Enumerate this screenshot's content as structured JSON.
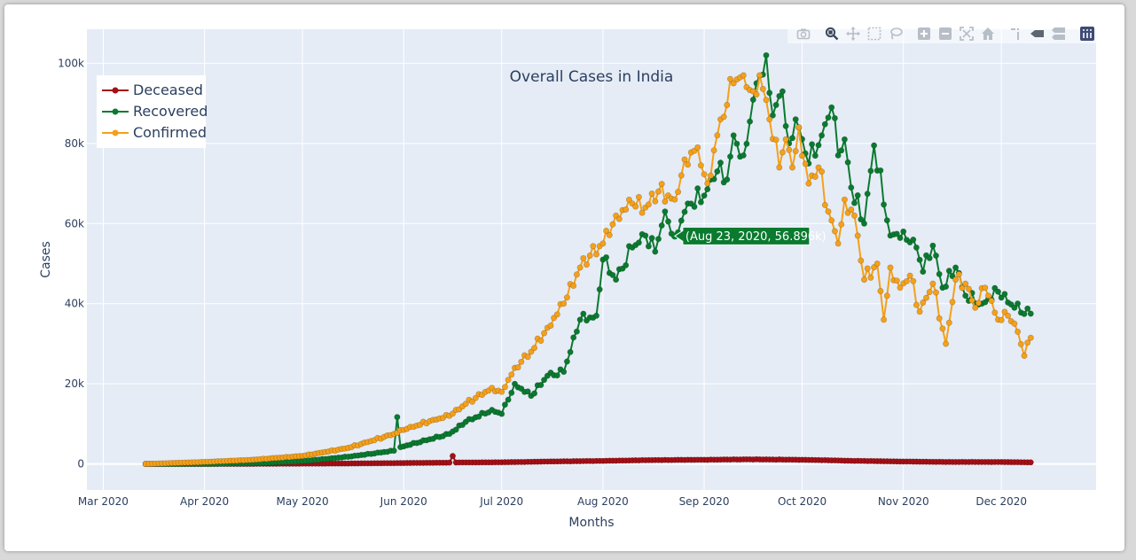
{
  "chart_data": {
    "type": "line",
    "title": "Overall Cases in India",
    "xlabel": "Months",
    "ylabel": "Cases",
    "x_start": "2020-03-14",
    "x_range": [
      "2020-02-25",
      "2020-12-30"
    ],
    "x_ticks": [
      {
        "date": "2020-03-01",
        "label": "Mar 2020"
      },
      {
        "date": "2020-04-01",
        "label": "Apr 2020"
      },
      {
        "date": "2020-05-01",
        "label": "May 2020"
      },
      {
        "date": "2020-06-01",
        "label": "Jun 2020"
      },
      {
        "date": "2020-07-01",
        "label": "Jul 2020"
      },
      {
        "date": "2020-08-01",
        "label": "Aug 2020"
      },
      {
        "date": "2020-09-01",
        "label": "Sep 2020"
      },
      {
        "date": "2020-10-01",
        "label": "Oct 2020"
      },
      {
        "date": "2020-11-01",
        "label": "Nov 2020"
      },
      {
        "date": "2020-12-01",
        "label": "Dec 2020"
      }
    ],
    "ylim": [
      -6500,
      108500
    ],
    "y_ticks": [
      {
        "value": 0,
        "label": "0"
      },
      {
        "value": 20000,
        "label": "20k"
      },
      {
        "value": 40000,
        "label": "40k"
      },
      {
        "value": 60000,
        "label": "60k"
      },
      {
        "value": 80000,
        "label": "80k"
      },
      {
        "value": 100000,
        "label": "100k"
      }
    ],
    "grid": true,
    "legend_position": "top-left",
    "series": [
      {
        "name": "Deceased",
        "color": "#a50f15",
        "anchors": [
          [
            "2020-03-14",
            0
          ],
          [
            "2020-04-01",
            5
          ],
          [
            "2020-04-15",
            30
          ],
          [
            "2020-05-01",
            80
          ],
          [
            "2020-05-15",
            120
          ],
          [
            "2020-06-01",
            230
          ],
          [
            "2020-06-15",
            330
          ],
          [
            "2020-06-16",
            2000
          ],
          [
            "2020-06-17",
            360
          ],
          [
            "2020-07-01",
            420
          ],
          [
            "2020-07-15",
            600
          ],
          [
            "2020-08-01",
            760
          ],
          [
            "2020-08-15",
            950
          ],
          [
            "2020-09-01",
            1050
          ],
          [
            "2020-09-15",
            1150
          ],
          [
            "2020-10-01",
            1050
          ],
          [
            "2020-10-15",
            800
          ],
          [
            "2020-11-01",
            600
          ],
          [
            "2020-11-15",
            500
          ],
          [
            "2020-12-01",
            480
          ],
          [
            "2020-12-10",
            400
          ]
        ]
      },
      {
        "name": "Recovered",
        "color": "#0a7a2f",
        "anchors": [
          [
            "2020-03-14",
            0
          ],
          [
            "2020-04-01",
            20
          ],
          [
            "2020-04-15",
            150
          ],
          [
            "2020-05-01",
            700
          ],
          [
            "2020-05-15",
            1800
          ],
          [
            "2020-05-29",
            3300
          ],
          [
            "2020-05-30",
            11700
          ],
          [
            "2020-05-31",
            4200
          ],
          [
            "2020-06-15",
            7500
          ],
          [
            "2020-06-20",
            10500
          ],
          [
            "2020-06-28",
            13500
          ],
          [
            "2020-07-01",
            12500
          ],
          [
            "2020-07-05",
            20000
          ],
          [
            "2020-07-10",
            17000
          ],
          [
            "2020-07-15",
            22000
          ],
          [
            "2020-07-20",
            23000
          ],
          [
            "2020-07-25",
            36000
          ],
          [
            "2020-07-30",
            37000
          ],
          [
            "2020-08-01",
            51000
          ],
          [
            "2020-08-05",
            46000
          ],
          [
            "2020-08-10",
            54000
          ],
          [
            "2020-08-14",
            57000
          ],
          [
            "2020-08-17",
            53000
          ],
          [
            "2020-08-20",
            63000
          ],
          [
            "2020-08-23",
            56896
          ],
          [
            "2020-08-27",
            65000
          ],
          [
            "2020-09-01",
            67000
          ],
          [
            "2020-09-05",
            73000
          ],
          [
            "2020-09-08",
            71000
          ],
          [
            "2020-09-10",
            82000
          ],
          [
            "2020-09-13",
            77000
          ],
          [
            "2020-09-17",
            95000
          ],
          [
            "2020-09-20",
            102000
          ],
          [
            "2020-09-22",
            87000
          ],
          [
            "2020-09-25",
            93000
          ],
          [
            "2020-09-27",
            80000
          ],
          [
            "2020-09-29",
            86000
          ],
          [
            "2020-10-03",
            75000
          ],
          [
            "2020-10-07",
            82000
          ],
          [
            "2020-10-10",
            89000
          ],
          [
            "2020-10-12",
            77000
          ],
          [
            "2020-10-14",
            81000
          ],
          [
            "2020-10-16",
            69000
          ],
          [
            "2020-10-20",
            60000
          ],
          [
            "2020-10-23",
            79500
          ],
          [
            "2020-10-28",
            57000
          ],
          [
            "2020-11-01",
            58000
          ],
          [
            "2020-11-05",
            54000
          ],
          [
            "2020-11-07",
            48000
          ],
          [
            "2020-11-10",
            54500
          ],
          [
            "2020-11-13",
            44000
          ],
          [
            "2020-11-17",
            49000
          ],
          [
            "2020-11-20",
            42000
          ],
          [
            "2020-11-25",
            40000
          ],
          [
            "2020-11-30",
            43000
          ],
          [
            "2020-12-05",
            39000
          ],
          [
            "2020-12-10",
            37500
          ]
        ]
      },
      {
        "name": "Confirmed",
        "color": "#f5a01a",
        "anchors": [
          [
            "2020-03-14",
            0
          ],
          [
            "2020-04-01",
            500
          ],
          [
            "2020-04-15",
            1000
          ],
          [
            "2020-05-01",
            2000
          ],
          [
            "2020-05-15",
            4000
          ],
          [
            "2020-05-29",
            7500
          ],
          [
            "2020-06-01",
            8500
          ],
          [
            "2020-06-10",
            11000
          ],
          [
            "2020-06-15",
            12000
          ],
          [
            "2020-06-20",
            15000
          ],
          [
            "2020-06-28",
            19000
          ],
          [
            "2020-07-01",
            18000
          ],
          [
            "2020-07-05",
            24000
          ],
          [
            "2020-07-10",
            28000
          ],
          [
            "2020-07-15",
            34000
          ],
          [
            "2020-07-20",
            40000
          ],
          [
            "2020-07-25",
            49000
          ],
          [
            "2020-07-28",
            52000
          ],
          [
            "2020-08-01",
            55000
          ],
          [
            "2020-08-05",
            62000
          ],
          [
            "2020-08-10",
            65000
          ],
          [
            "2020-08-14",
            64000
          ],
          [
            "2020-08-18",
            68000
          ],
          [
            "2020-08-23",
            66000
          ],
          [
            "2020-08-26",
            76000
          ],
          [
            "2020-08-30",
            79000
          ],
          [
            "2020-09-02",
            70000
          ],
          [
            "2020-09-06",
            86000
          ],
          [
            "2020-09-10",
            95000
          ],
          [
            "2020-09-13",
            97000
          ],
          [
            "2020-09-16",
            93000
          ],
          [
            "2020-09-18",
            97000
          ],
          [
            "2020-09-21",
            86000
          ],
          [
            "2020-09-24",
            74000
          ],
          [
            "2020-09-26",
            81000
          ],
          [
            "2020-09-28",
            74000
          ],
          [
            "2020-09-30",
            84000
          ],
          [
            "2020-10-03",
            70000
          ],
          [
            "2020-10-06",
            74000
          ],
          [
            "2020-10-09",
            63000
          ],
          [
            "2020-10-12",
            55000
          ],
          [
            "2020-10-14",
            66000
          ],
          [
            "2020-10-17",
            62000
          ],
          [
            "2020-10-20",
            46000
          ],
          [
            "2020-10-24",
            50000
          ],
          [
            "2020-10-26",
            36000
          ],
          [
            "2020-10-28",
            49000
          ],
          [
            "2020-10-31",
            44000
          ],
          [
            "2020-11-03",
            47000
          ],
          [
            "2020-11-06",
            38000
          ],
          [
            "2020-11-10",
            45000
          ],
          [
            "2020-11-14",
            30000
          ],
          [
            "2020-11-17",
            46000
          ],
          [
            "2020-11-20",
            45000
          ],
          [
            "2020-11-23",
            39000
          ],
          [
            "2020-11-26",
            44000
          ],
          [
            "2020-11-30",
            36000
          ],
          [
            "2020-12-03",
            37000
          ],
          [
            "2020-12-06",
            33000
          ],
          [
            "2020-12-08",
            27000
          ],
          [
            "2020-12-10",
            31500
          ]
        ]
      }
    ],
    "hover": {
      "label": "(Aug 23, 2020, 56.896k)",
      "series": "Recovered",
      "date": "2020-08-23",
      "value": 56896,
      "color": "#0a7a2f"
    }
  },
  "modebar": {
    "buttons": [
      {
        "name": "camera-icon",
        "title": "Download plot as a png"
      },
      {
        "name": "zoom-icon",
        "title": "Zoom"
      },
      {
        "name": "pan-icon",
        "title": "Pan"
      },
      {
        "name": "box-select-icon",
        "title": "Box Select"
      },
      {
        "name": "lasso-select-icon",
        "title": "Lasso Select"
      },
      {
        "name": "zoom-in-icon",
        "title": "Zoom in"
      },
      {
        "name": "zoom-out-icon",
        "title": "Zoom out"
      },
      {
        "name": "autoscale-icon",
        "title": "Autoscale"
      },
      {
        "name": "reset-axes-icon",
        "title": "Reset axes"
      },
      {
        "name": "toggle-spike-lines-icon",
        "title": "Toggle Spike Lines"
      },
      {
        "name": "hover-closest-icon",
        "title": "Show closest data on hover"
      },
      {
        "name": "hover-compare-icon",
        "title": "Compare data on hover"
      },
      {
        "name": "plotly-logo-icon",
        "title": "Produced with Plotly"
      }
    ]
  }
}
